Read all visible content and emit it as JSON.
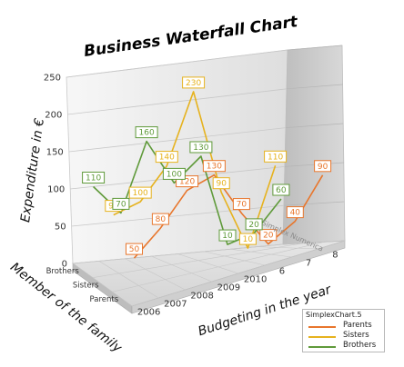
{
  "chart_data": {
    "type": "line",
    "title": "Business Waterfall Chart",
    "xlabel": "Budgeting in the year",
    "ylabel": "Expenditure in €",
    "zlabel": "Member of the family",
    "x": [
      "2006",
      "2007",
      "2008",
      "2009",
      "2010",
      "6",
      "7",
      "8"
    ],
    "z_categories": [
      "Parents",
      "Sisters",
      "Brothers"
    ],
    "ylim": [
      0,
      250
    ],
    "yticks": [
      "0",
      "50",
      "100",
      "150",
      "200",
      "250"
    ],
    "series": [
      {
        "name": "Parents",
        "color": "#e8762c",
        "values": [
          50,
          80,
          120,
          130,
          70,
          20,
          40,
          90
        ]
      },
      {
        "name": "Sisters",
        "color": "#e6b21e",
        "values": [
          90,
          100,
          140,
          230,
          90,
          10,
          110,
          null
        ]
      },
      {
        "name": "Brothers",
        "color": "#5f9a3a",
        "values": [
          110,
          70,
          160,
          100,
          130,
          10,
          20,
          60
        ]
      }
    ],
    "watermark": "Simplex Numerica",
    "legend": {
      "title": "SimplexChart.5",
      "position": "bottom-right"
    },
    "grid": true
  }
}
